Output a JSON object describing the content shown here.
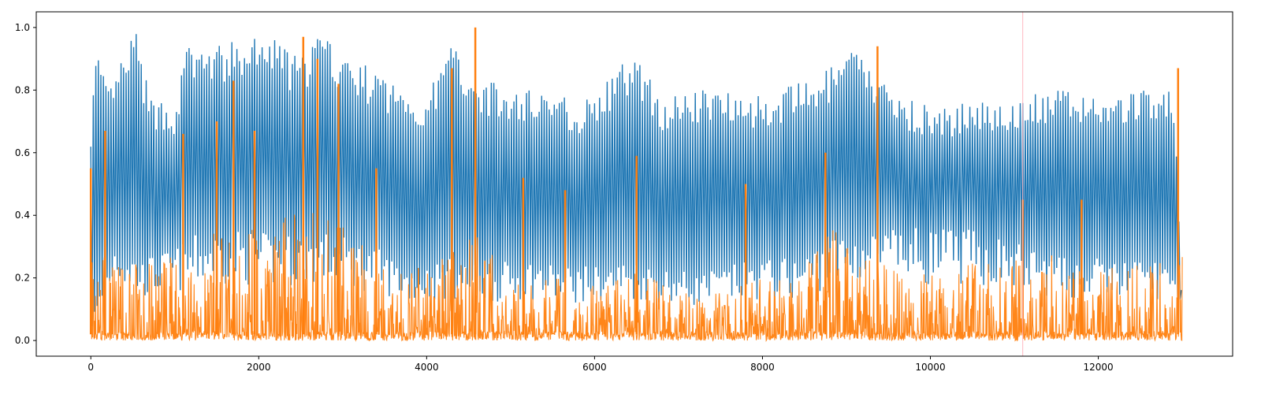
{
  "chart_data": {
    "type": "line",
    "title": "",
    "xlabel": "",
    "ylabel": "",
    "xlim": [
      -650,
      13600
    ],
    "ylim": [
      -0.05,
      1.05
    ],
    "x_ticks": [
      0,
      2000,
      4000,
      6000,
      8000,
      10000,
      12000
    ],
    "x_tick_labels": [
      "0",
      "2000",
      "4000",
      "6000",
      "8000",
      "10000",
      "12000"
    ],
    "y_ticks": [
      0.0,
      0.2,
      0.4,
      0.6,
      0.8,
      1.0
    ],
    "y_tick_labels": [
      "0.0",
      "0.2",
      "0.4",
      "0.6",
      "0.8",
      "1.0"
    ],
    "grid": false,
    "legend": "none",
    "vertical_line": {
      "x": 11100,
      "color": "#ffb6c1"
    },
    "series": [
      {
        "color": "#1f77b4",
        "x_range": [
          0,
          13000
        ],
        "oscillating": true,
        "upper_envelope": [
          [
            0,
            0.72
          ],
          [
            70,
            0.94
          ],
          [
            200,
            0.8
          ],
          [
            530,
            1.0
          ],
          [
            700,
            0.78
          ],
          [
            1000,
            0.76
          ],
          [
            1150,
            0.95
          ],
          [
            1400,
            0.94
          ],
          [
            1800,
            0.96
          ],
          [
            2150,
            0.98
          ],
          [
            2500,
            0.9
          ],
          [
            2700,
            0.99
          ],
          [
            3000,
            0.92
          ],
          [
            3400,
            0.86
          ],
          [
            3800,
            0.8
          ],
          [
            4000,
            0.78
          ],
          [
            4300,
            0.96
          ],
          [
            4600,
            0.85
          ],
          [
            5000,
            0.8
          ],
          [
            5400,
            0.82
          ],
          [
            5800,
            0.76
          ],
          [
            6200,
            0.84
          ],
          [
            6450,
            0.93
          ],
          [
            6800,
            0.78
          ],
          [
            7200,
            0.8
          ],
          [
            7600,
            0.82
          ],
          [
            8000,
            0.78
          ],
          [
            8400,
            0.82
          ],
          [
            8800,
            0.87
          ],
          [
            9100,
            0.94
          ],
          [
            9400,
            0.84
          ],
          [
            9800,
            0.77
          ],
          [
            10200,
            0.74
          ],
          [
            10600,
            0.78
          ],
          [
            11000,
            0.77
          ],
          [
            11400,
            0.8
          ],
          [
            11800,
            0.8
          ],
          [
            12200,
            0.78
          ],
          [
            12600,
            0.82
          ],
          [
            12900,
            0.79
          ],
          [
            13000,
            0.12
          ]
        ],
        "lower_envelope": [
          [
            0,
            0.05
          ],
          [
            300,
            0.3
          ],
          [
            600,
            0.22
          ],
          [
            1000,
            0.25
          ],
          [
            1400,
            0.3
          ],
          [
            1800,
            0.3
          ],
          [
            2200,
            0.28
          ],
          [
            2600,
            0.3
          ],
          [
            3000,
            0.28
          ],
          [
            3400,
            0.25
          ],
          [
            3800,
            0.2
          ],
          [
            4300,
            0.22
          ],
          [
            4700,
            0.2
          ],
          [
            5200,
            0.22
          ],
          [
            5600,
            0.2
          ],
          [
            6000,
            0.2
          ],
          [
            6400,
            0.22
          ],
          [
            6800,
            0.2
          ],
          [
            7200,
            0.18
          ],
          [
            7600,
            0.2
          ],
          [
            8000,
            0.22
          ],
          [
            8400,
            0.22
          ],
          [
            8800,
            0.28
          ],
          [
            9200,
            0.3
          ],
          [
            9600,
            0.3
          ],
          [
            10000,
            0.3
          ],
          [
            10400,
            0.3
          ],
          [
            10800,
            0.28
          ],
          [
            11200,
            0.25
          ],
          [
            11600,
            0.22
          ],
          [
            12000,
            0.22
          ],
          [
            12400,
            0.22
          ],
          [
            12800,
            0.22
          ],
          [
            13000,
            0.1
          ]
        ]
      },
      {
        "color": "#ff7f0e",
        "x_range": [
          0,
          13000
        ],
        "dense_band_top": [
          [
            0,
            0.3
          ],
          [
            500,
            0.25
          ],
          [
            1000,
            0.28
          ],
          [
            1500,
            0.35
          ],
          [
            2000,
            0.38
          ],
          [
            2500,
            0.42
          ],
          [
            2900,
            0.4
          ],
          [
            3300,
            0.3
          ],
          [
            3800,
            0.22
          ],
          [
            4300,
            0.28
          ],
          [
            4600,
            0.35
          ],
          [
            5000,
            0.2
          ],
          [
            5500,
            0.2
          ],
          [
            6000,
            0.18
          ],
          [
            6500,
            0.22
          ],
          [
            7000,
            0.16
          ],
          [
            7500,
            0.16
          ],
          [
            8000,
            0.2
          ],
          [
            8400,
            0.22
          ],
          [
            8800,
            0.38
          ],
          [
            9000,
            0.32
          ],
          [
            9500,
            0.24
          ],
          [
            10000,
            0.22
          ],
          [
            10500,
            0.26
          ],
          [
            11000,
            0.26
          ],
          [
            11500,
            0.28
          ],
          [
            12000,
            0.24
          ],
          [
            12500,
            0.24
          ],
          [
            13000,
            0.3
          ]
        ],
        "spikes": [
          [
            0,
            0.55
          ],
          [
            170,
            0.67
          ],
          [
            1100,
            0.66
          ],
          [
            1500,
            0.7
          ],
          [
            1700,
            0.83
          ],
          [
            1950,
            0.67
          ],
          [
            2530,
            0.97
          ],
          [
            2700,
            0.9
          ],
          [
            2950,
            0.82
          ],
          [
            3400,
            0.55
          ],
          [
            4300,
            0.87
          ],
          [
            4580,
            1.0
          ],
          [
            5150,
            0.52
          ],
          [
            5650,
            0.48
          ],
          [
            6500,
            0.59
          ],
          [
            7800,
            0.5
          ],
          [
            8750,
            0.6
          ],
          [
            9370,
            0.94
          ],
          [
            11100,
            0.45
          ],
          [
            11800,
            0.45
          ],
          [
            12950,
            0.87
          ]
        ]
      }
    ]
  }
}
